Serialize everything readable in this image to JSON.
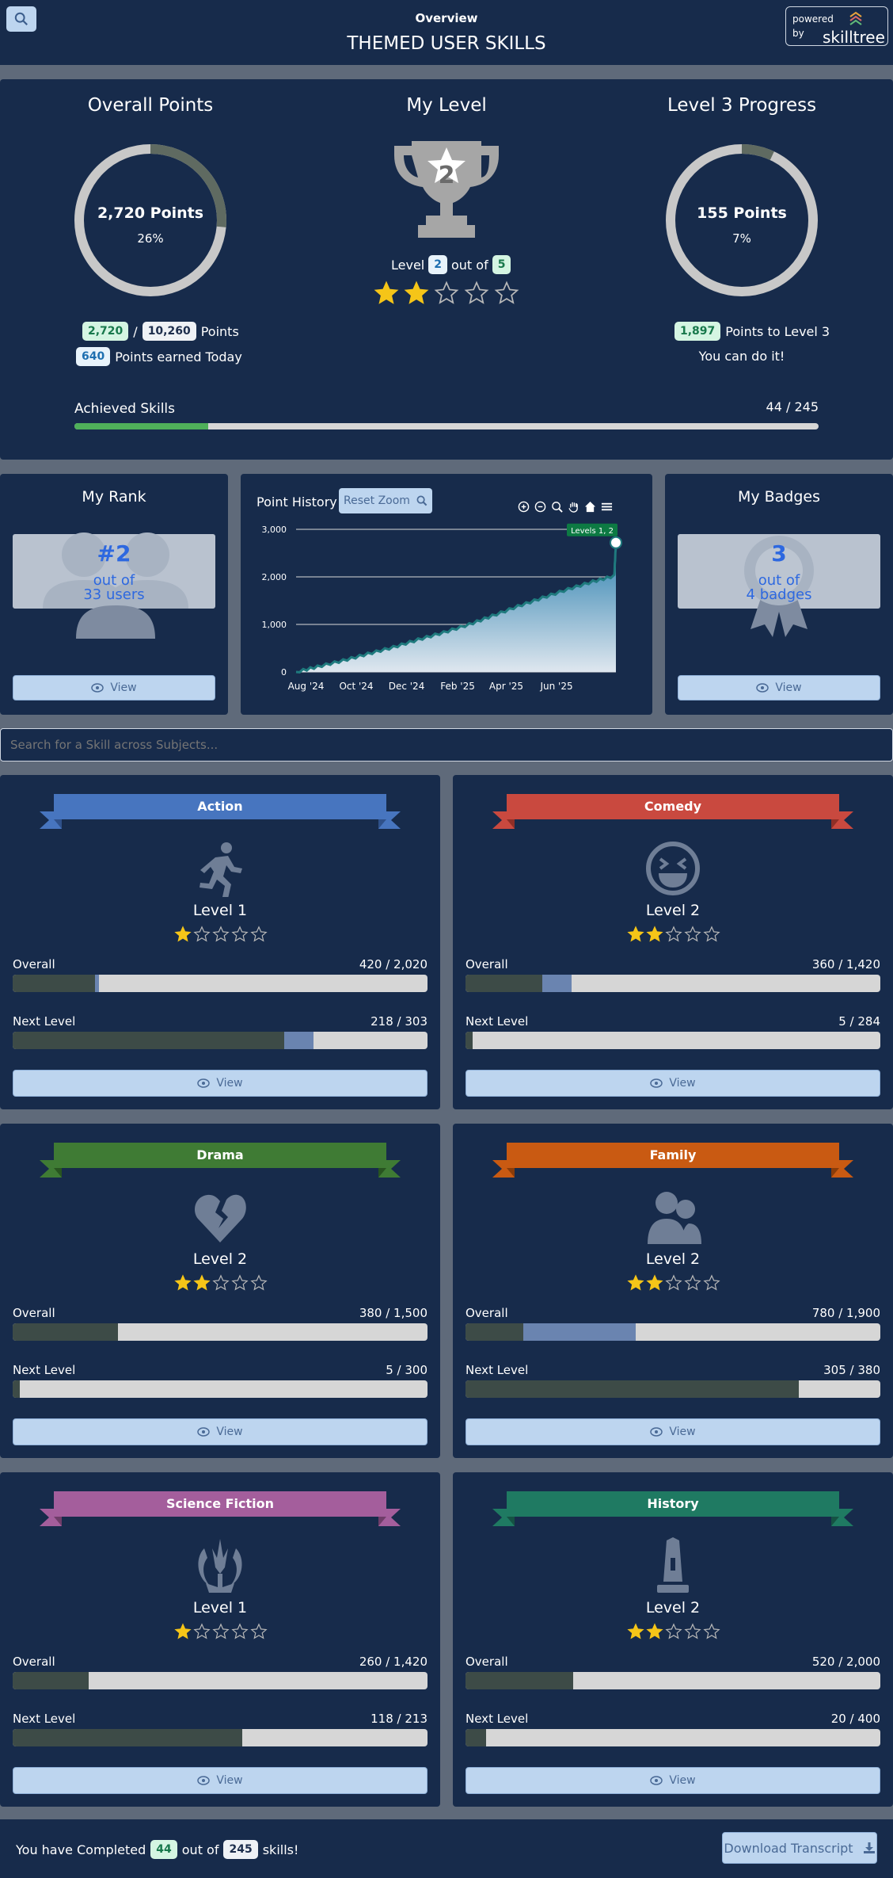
{
  "header": {
    "subtitle": "Overview",
    "title": "THEMED USER SKILLS",
    "powered_by": "powered by",
    "brand": "skilltree"
  },
  "overall": {
    "title": "Overall Points",
    "points_label": "2,720 Points",
    "percent_label": "26%",
    "percent": 0.2647,
    "earned": "2,720",
    "total": "10,260",
    "points_word": "Points",
    "today": "640",
    "today_label": "Points earned Today"
  },
  "level": {
    "title": "My Level",
    "number": "2",
    "level_word": "Level",
    "out_of": "out of",
    "max": "5",
    "stars_filled": 2,
    "stars_total": 5
  },
  "progress": {
    "title": "Level 3 Progress",
    "points_label": "155 Points",
    "percent_label": "7%",
    "percent": 0.07,
    "to_next": "1,897",
    "to_next_label": "Points to Level 3",
    "encourage": "You can do it!"
  },
  "achieved": {
    "label": "Achieved Skills",
    "value": "44 / 245",
    "fraction": 0.1796
  },
  "rank": {
    "title": "My Rank",
    "position": "#2",
    "out_of": "out of",
    "users": "33 users",
    "view": "View"
  },
  "history": {
    "title": "Point History",
    "reset_zoom": "Reset Zoom",
    "tooltip": "Levels 1, 2"
  },
  "badges": {
    "title": "My Badges",
    "count": "3",
    "out_of": "out of",
    "total": "4 badges",
    "view": "View"
  },
  "search": {
    "placeholder": "Search for a Skill across Subjects..."
  },
  "colors": {
    "action": "#4775bf",
    "comedy": "#c9493f",
    "drama": "#3f7b34",
    "family": "#c95a12",
    "scifi": "#a45e9c",
    "history": "#1f7a62",
    "gauge": "#c8c8c8",
    "gauge_fill": "#5f6a61",
    "star": "#f5c518"
  },
  "subjects": [
    {
      "name": "Action",
      "icon": "running-person-icon",
      "color": "#4775bf",
      "dark": "#2f518a",
      "level": "Level 1",
      "stars": 1,
      "overall_label": "Overall",
      "overall_value": "420 / 2,020",
      "overall_green": 0.198,
      "overall_blue": 0.01,
      "next_label": "Next Level",
      "next_value": "218 / 303",
      "next_green": 0.655,
      "next_blue": 0.07,
      "view": "View"
    },
    {
      "name": "Comedy",
      "icon": "laughing-face-icon",
      "color": "#c9493f",
      "dark": "#8f2f27",
      "level": "Level 2",
      "stars": 2,
      "overall_label": "Overall",
      "overall_value": "360 / 1,420",
      "overall_green": 0.185,
      "overall_blue": 0.07,
      "next_label": "Next Level",
      "next_value": "5 / 284",
      "next_green": 0.018,
      "next_blue": 0,
      "view": "View"
    },
    {
      "name": "Drama",
      "icon": "broken-heart-icon",
      "color": "#3f7b34",
      "dark": "#285420",
      "level": "Level 2",
      "stars": 2,
      "overall_label": "Overall",
      "overall_value": "380 / 1,500",
      "overall_green": 0.253,
      "overall_blue": 0,
      "next_label": "Next Level",
      "next_value": "5 / 300",
      "next_green": 0.017,
      "next_blue": 0,
      "view": "View"
    },
    {
      "name": "Family",
      "icon": "people-icon",
      "color": "#c95a12",
      "dark": "#8a3c09",
      "level": "Level 2",
      "stars": 2,
      "overall_label": "Overall",
      "overall_value": "780 / 1,900",
      "overall_green": 0.14,
      "overall_blue": 0.27,
      "next_label": "Next Level",
      "next_value": "305 / 380",
      "next_green": 0.803,
      "next_blue": 0,
      "view": "View"
    },
    {
      "name": "Science Fiction",
      "icon": "jedi-order-icon",
      "color": "#a45e9c",
      "dark": "#6f3d69",
      "level": "Level 1",
      "stars": 1,
      "overall_label": "Overall",
      "overall_value": "260 / 1,420",
      "overall_green": 0.183,
      "overall_blue": 0,
      "next_label": "Next Level",
      "next_value": "118 / 213",
      "next_green": 0.554,
      "next_blue": 0,
      "view": "View"
    },
    {
      "name": "History",
      "icon": "monument-icon",
      "color": "#1f7a62",
      "dark": "#155243",
      "level": "Level 2",
      "stars": 2,
      "overall_label": "Overall",
      "overall_value": "520 / 2,000",
      "overall_green": 0.26,
      "overall_blue": 0,
      "next_label": "Next Level",
      "next_value": "20 / 400",
      "next_green": 0.05,
      "next_blue": 0,
      "view": "View"
    }
  ],
  "footer": {
    "completed_label": "You have Completed",
    "completed": "44",
    "out_of": "out of",
    "total": "245",
    "skills_label": "skills!",
    "download": "Download Transcript"
  },
  "chart_data": {
    "type": "area",
    "title": "Point History",
    "x_ticks": [
      "Aug '24",
      "Oct '24",
      "Dec '24",
      "Feb '25",
      "Apr '25",
      "Jun '25"
    ],
    "y_ticks": [
      "0",
      "1,000",
      "2,000",
      "3,000"
    ],
    "ylim": [
      0,
      3000
    ],
    "series": [
      {
        "name": "",
        "x": [
          "2024-07-20",
          "2024-08-15",
          "2024-09-15",
          "2024-10-15",
          "2024-11-15",
          "2024-12-15",
          "2025-01-15",
          "2025-02-15",
          "2025-03-15",
          "2025-04-15",
          "2025-05-15",
          "2025-06-15",
          "2025-07-15",
          "2025-08-10",
          "2025-08-12"
        ],
        "values": [
          0,
          110,
          240,
          380,
          520,
          680,
          830,
          1000,
          1180,
          1380,
          1560,
          1740,
          1900,
          2020,
          2720
        ]
      }
    ]
  }
}
